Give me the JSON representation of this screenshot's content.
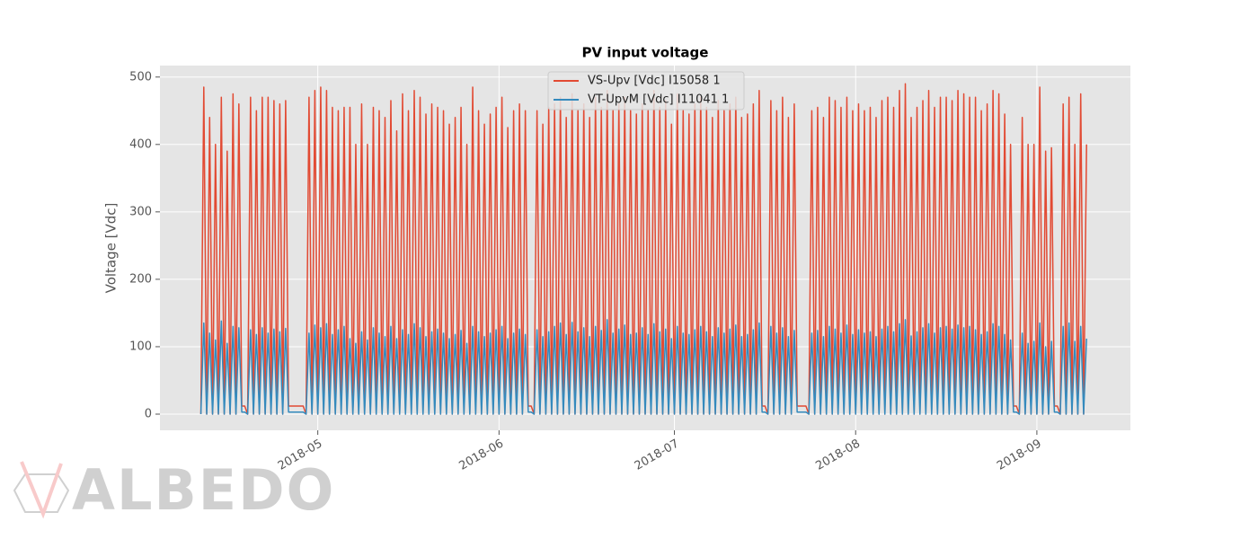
{
  "watermark": "ALBEDO",
  "chart_data": {
    "type": "line",
    "title": "PV input voltage",
    "y_label": "Voltage [Vdc]",
    "xlim": [
      94,
      260
    ],
    "ylim": [
      -24,
      517
    ],
    "xticks": [
      {
        "value": 121,
        "label": "2018-05"
      },
      {
        "value": 152,
        "label": "2018-06"
      },
      {
        "value": 182,
        "label": "2018-07"
      },
      {
        "value": 213,
        "label": "2018-08"
      },
      {
        "value": 244,
        "label": "2018-09"
      }
    ],
    "yticks": [
      0,
      100,
      200,
      300,
      400,
      500
    ],
    "grid": true,
    "legend": "upper center",
    "x": [
      101,
      101.5,
      102,
      102.5,
      103,
      103.5,
      104,
      104.5,
      105,
      105.5,
      106,
      106.5,
      107,
      107.5,
      108,
      108.5,
      109,
      109.5,
      110,
      110.5,
      111,
      111.5,
      112,
      112.5,
      113,
      113.5,
      114,
      114.5,
      115,
      115.5,
      116,
      116.5,
      117,
      117.5,
      118,
      118.5,
      119,
      119.5,
      120,
      120.5,
      121,
      121.5,
      122,
      122.5,
      123,
      123.5,
      124,
      124.5,
      125,
      125.5,
      126,
      126.5,
      127,
      127.5,
      128,
      128.5,
      129,
      129.5,
      130,
      130.5,
      131,
      131.5,
      132,
      132.5,
      133,
      133.5,
      134,
      134.5,
      135,
      135.5,
      136,
      136.5,
      137,
      137.5,
      138,
      138.5,
      139,
      139.5,
      140,
      140.5,
      141,
      141.5,
      142,
      142.5,
      143,
      143.5,
      144,
      144.5,
      145,
      145.5,
      146,
      146.5,
      147,
      147.5,
      148,
      148.5,
      149,
      149.5,
      150,
      150.5,
      151,
      151.5,
      152,
      152.5,
      153,
      153.5,
      154,
      154.5,
      155,
      155.5,
      156,
      156.5,
      157,
      157.5,
      158,
      158.5,
      159,
      159.5,
      160,
      160.5,
      161,
      161.5,
      162,
      162.5,
      163,
      163.5,
      164,
      164.5,
      165,
      165.5,
      166,
      166.5,
      167,
      167.5,
      168,
      168.5,
      169,
      169.5,
      170,
      170.5,
      171,
      171.5,
      172,
      172.5,
      173,
      173.5,
      174,
      174.5,
      175,
      175.5,
      176,
      176.5,
      177,
      177.5,
      178,
      178.5,
      179,
      179.5,
      180,
      180.5,
      181,
      181.5,
      182,
      182.5,
      183,
      183.5,
      184,
      184.5,
      185,
      185.5,
      186,
      186.5,
      187,
      187.5,
      188,
      188.5,
      189,
      189.5,
      190,
      190.5,
      191,
      191.5,
      192,
      192.5,
      193,
      193.5,
      194,
      194.5,
      195,
      195.5,
      196,
      196.5,
      197,
      197.5,
      198,
      198.5,
      199,
      199.5,
      200,
      200.5,
      201,
      201.5,
      202,
      202.5,
      203,
      203.5,
      204,
      204.5,
      205,
      205.5,
      206,
      206.5,
      207,
      207.5,
      208,
      208.5,
      209,
      209.5,
      210,
      210.5,
      211,
      211.5,
      212,
      212.5,
      213,
      213.5,
      214,
      214.5,
      215,
      215.5,
      216,
      216.5,
      217,
      217.5,
      218,
      218.5,
      219,
      219.5,
      220,
      220.5,
      221,
      221.5,
      222,
      222.5,
      223,
      223.5,
      224,
      224.5,
      225,
      225.5,
      226,
      226.5,
      227,
      227.5,
      228,
      228.5,
      229,
      229.5,
      230,
      230.5,
      231,
      231.5,
      232,
      232.5,
      233,
      233.5,
      234,
      234.5,
      235,
      235.5,
      236,
      236.5,
      237,
      237.5,
      238,
      238.5,
      239,
      239.5,
      240,
      240.5,
      241,
      241.5,
      242,
      242.5,
      243,
      243.5,
      244,
      244.5,
      245,
      245.5,
      246,
      246.5,
      247,
      247.5,
      248,
      248.5,
      249,
      249.5,
      250,
      250.5,
      251,
      251.5,
      252,
      252.5
    ],
    "series": [
      {
        "name": "VS-Upv [Vdc] I15058 1",
        "color": "#E24A33",
        "values": [
          0,
          485,
          0,
          440,
          0,
          400,
          0,
          470,
          0,
          390,
          0,
          475,
          0,
          460,
          12,
          12,
          0,
          470,
          0,
          450,
          0,
          470,
          0,
          470,
          0,
          465,
          0,
          460,
          0,
          465,
          12,
          12,
          12,
          12,
          12,
          12,
          0,
          470,
          0,
          480,
          0,
          485,
          0,
          480,
          0,
          455,
          0,
          450,
          0,
          455,
          0,
          455,
          0,
          400,
          0,
          460,
          0,
          400,
          0,
          455,
          0,
          450,
          0,
          440,
          0,
          465,
          0,
          420,
          0,
          475,
          0,
          450,
          0,
          480,
          0,
          470,
          0,
          445,
          0,
          460,
          0,
          455,
          0,
          450,
          0,
          430,
          0,
          440,
          0,
          455,
          0,
          400,
          0,
          485,
          0,
          450,
          0,
          430,
          0,
          445,
          0,
          455,
          0,
          470,
          0,
          425,
          0,
          450,
          0,
          460,
          0,
          450,
          12,
          12,
          0,
          450,
          0,
          430,
          0,
          455,
          0,
          460,
          0,
          470,
          0,
          440,
          0,
          475,
          0,
          450,
          0,
          460,
          0,
          440,
          0,
          470,
          0,
          455,
          0,
          480,
          0,
          450,
          0,
          460,
          0,
          470,
          0,
          450,
          0,
          445,
          0,
          460,
          0,
          450,
          0,
          480,
          0,
          455,
          0,
          465,
          0,
          430,
          0,
          475,
          0,
          450,
          0,
          445,
          0,
          460,
          0,
          470,
          0,
          455,
          0,
          440,
          0,
          465,
          0,
          450,
          0,
          460,
          0,
          470,
          0,
          440,
          0,
          445,
          0,
          460,
          0,
          480,
          12,
          12,
          0,
          465,
          0,
          450,
          0,
          470,
          0,
          440,
          0,
          460,
          12,
          12,
          12,
          12,
          0,
          450,
          0,
          455,
          0,
          440,
          0,
          470,
          0,
          465,
          0,
          455,
          0,
          470,
          0,
          450,
          0,
          460,
          0,
          450,
          0,
          455,
          0,
          440,
          0,
          465,
          0,
          470,
          0,
          455,
          0,
          480,
          0,
          490,
          0,
          440,
          0,
          455,
          0,
          465,
          0,
          480,
          0,
          455,
          0,
          470,
          0,
          470,
          0,
          465,
          0,
          480,
          0,
          475,
          0,
          470,
          0,
          470,
          0,
          450,
          0,
          460,
          0,
          480,
          0,
          475,
          0,
          445,
          0,
          400,
          12,
          12,
          0,
          440,
          0,
          400,
          0,
          400,
          0,
          485,
          0,
          390,
          0,
          395,
          12,
          12,
          0,
          460,
          0,
          470,
          0,
          400,
          0,
          475,
          0,
          400
        ]
      },
      {
        "name": "VT-UpvM [Vdc] I11041 1",
        "color": "#348ABD",
        "values": [
          0,
          135,
          0,
          120,
          0,
          110,
          0,
          138,
          0,
          105,
          0,
          130,
          0,
          128,
          3,
          3,
          0,
          125,
          0,
          118,
          0,
          128,
          0,
          120,
          0,
          126,
          0,
          122,
          0,
          127,
          3,
          3,
          3,
          3,
          3,
          3,
          0,
          120,
          0,
          132,
          0,
          128,
          0,
          134,
          0,
          118,
          0,
          125,
          0,
          130,
          0,
          112,
          0,
          105,
          0,
          122,
          0,
          110,
          0,
          128,
          0,
          120,
          0,
          115,
          0,
          130,
          0,
          112,
          0,
          125,
          0,
          118,
          0,
          134,
          0,
          128,
          0,
          115,
          0,
          122,
          0,
          126,
          0,
          120,
          0,
          112,
          0,
          118,
          0,
          124,
          0,
          105,
          0,
          130,
          0,
          122,
          0,
          115,
          0,
          120,
          0,
          125,
          0,
          130,
          0,
          112,
          0,
          120,
          0,
          126,
          0,
          118,
          3,
          3,
          0,
          125,
          0,
          115,
          0,
          122,
          0,
          130,
          0,
          135,
          0,
          118,
          0,
          136,
          0,
          122,
          0,
          128,
          0,
          115,
          0,
          130,
          0,
          124,
          0,
          140,
          0,
          120,
          0,
          126,
          0,
          132,
          0,
          118,
          0,
          120,
          0,
          128,
          0,
          118,
          0,
          134,
          0,
          122,
          0,
          126,
          0,
          112,
          0,
          130,
          0,
          120,
          0,
          118,
          0,
          125,
          0,
          130,
          0,
          122,
          0,
          115,
          0,
          128,
          0,
          120,
          0,
          126,
          0,
          132,
          0,
          115,
          0,
          118,
          0,
          125,
          0,
          135,
          3,
          3,
          0,
          130,
          0,
          120,
          0,
          128,
          0,
          115,
          0,
          124,
          3,
          3,
          3,
          3,
          0,
          120,
          0,
          124,
          0,
          115,
          0,
          130,
          0,
          126,
          0,
          120,
          0,
          132,
          0,
          118,
          0,
          125,
          0,
          120,
          0,
          122,
          0,
          115,
          0,
          126,
          0,
          130,
          0,
          122,
          0,
          134,
          0,
          140,
          0,
          116,
          0,
          122,
          0,
          128,
          0,
          134,
          0,
          120,
          0,
          128,
          0,
          130,
          0,
          126,
          0,
          132,
          0,
          128,
          0,
          130,
          0,
          125,
          0,
          118,
          0,
          122,
          0,
          134,
          0,
          130,
          0,
          118,
          0,
          110,
          3,
          3,
          0,
          120,
          0,
          105,
          0,
          108,
          0,
          135,
          0,
          100,
          0,
          108,
          3,
          3,
          0,
          130,
          0,
          135,
          0,
          108,
          0,
          130,
          0,
          112
        ]
      }
    ]
  }
}
